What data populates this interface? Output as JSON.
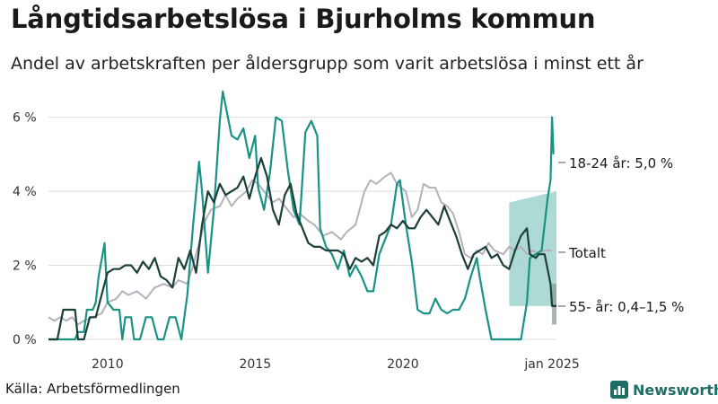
{
  "header": {
    "title": "Långtidsarbetslösa i Bjurholms kommun",
    "subtitle": "Andel av arbetskraften per åldersgrupp som varit arbetslösa i minst ett år"
  },
  "footer": {
    "source": "Källa: Arbetsförmedlingen",
    "brand": "Newsworthy"
  },
  "colors": {
    "youth": "#1a9384",
    "older": "#1c3f38",
    "total": "#b4b0be",
    "youth_band": "#9fd3cd",
    "older_band": "#8a9b97",
    "grid": "#dddddd",
    "axis_text": "#333333",
    "brand": "#1f6e63"
  },
  "chart_data": {
    "type": "line",
    "title": "Långtidsarbetslösa i Bjurholms kommun",
    "subtitle": "Andel av arbetskraften per åldersgrupp som varit arbetslösa i minst ett år",
    "x_range": [
      2008.0,
      2025.2
    ],
    "ylim": [
      0,
      6.5
    ],
    "y_ticks": [
      0,
      2,
      4,
      6
    ],
    "y_tick_labels": [
      "0 %",
      "2 %",
      "4 %",
      "6 %"
    ],
    "x_ticks": [
      2010,
      2015,
      2020,
      2025.05
    ],
    "x_tick_labels": [
      "2010",
      "2015",
      "2020",
      "jan 2025"
    ],
    "grid": true,
    "series": [
      {
        "key": "total",
        "values": [
          [
            2008.0,
            0.6
          ],
          [
            2008.2,
            0.5
          ],
          [
            2008.4,
            0.6
          ],
          [
            2008.6,
            0.5
          ],
          [
            2008.8,
            0.6
          ],
          [
            2009.0,
            0.4
          ],
          [
            2009.2,
            0.5
          ],
          [
            2009.5,
            0.6
          ],
          [
            2009.8,
            0.7
          ],
          [
            2010.0,
            1.0
          ],
          [
            2010.3,
            1.1
          ],
          [
            2010.5,
            1.3
          ],
          [
            2010.7,
            1.2
          ],
          [
            2011.0,
            1.3
          ],
          [
            2011.3,
            1.1
          ],
          [
            2011.6,
            1.4
          ],
          [
            2011.9,
            1.5
          ],
          [
            2012.2,
            1.4
          ],
          [
            2012.4,
            1.6
          ],
          [
            2012.7,
            1.5
          ],
          [
            2012.9,
            2.0
          ],
          [
            2013.1,
            2.6
          ],
          [
            2013.3,
            3.2
          ],
          [
            2013.5,
            3.5
          ],
          [
            2013.8,
            3.6
          ],
          [
            2014.0,
            3.9
          ],
          [
            2014.2,
            3.6
          ],
          [
            2014.4,
            3.8
          ],
          [
            2014.7,
            4.0
          ],
          [
            2014.9,
            4.3
          ],
          [
            2015.1,
            4.2
          ],
          [
            2015.3,
            4.0
          ],
          [
            2015.6,
            3.7
          ],
          [
            2015.8,
            3.8
          ],
          [
            2016.0,
            3.6
          ],
          [
            2016.3,
            3.3
          ],
          [
            2016.5,
            3.4
          ],
          [
            2016.8,
            3.2
          ],
          [
            2017.0,
            3.1
          ],
          [
            2017.3,
            2.8
          ],
          [
            2017.6,
            2.9
          ],
          [
            2017.9,
            2.7
          ],
          [
            2018.1,
            2.9
          ],
          [
            2018.4,
            3.1
          ],
          [
            2018.7,
            4.0
          ],
          [
            2018.9,
            4.3
          ],
          [
            2019.1,
            4.2
          ],
          [
            2019.4,
            4.4
          ],
          [
            2019.6,
            4.5
          ],
          [
            2019.8,
            4.2
          ],
          [
            2020.1,
            4.0
          ],
          [
            2020.3,
            3.3
          ],
          [
            2020.5,
            3.5
          ],
          [
            2020.7,
            4.2
          ],
          [
            2020.9,
            4.1
          ],
          [
            2021.1,
            4.1
          ],
          [
            2021.3,
            3.7
          ],
          [
            2021.5,
            3.6
          ],
          [
            2021.7,
            3.4
          ],
          [
            2021.9,
            2.9
          ],
          [
            2022.1,
            2.3
          ],
          [
            2022.3,
            2.2
          ],
          [
            2022.5,
            2.4
          ],
          [
            2022.7,
            2.3
          ],
          [
            2022.9,
            2.6
          ],
          [
            2023.1,
            2.4
          ],
          [
            2023.4,
            2.3
          ],
          [
            2023.6,
            2.5
          ],
          [
            2023.8,
            2.4
          ],
          [
            2024.0,
            2.5
          ],
          [
            2024.2,
            2.3
          ],
          [
            2024.4,
            2.4
          ],
          [
            2024.6,
            2.3
          ],
          [
            2024.8,
            2.4
          ],
          [
            2025.05,
            2.4
          ]
        ]
      },
      {
        "key": "youth",
        "values": [
          [
            2008.0,
            0.0
          ],
          [
            2008.5,
            0.0
          ],
          [
            2008.9,
            0.0
          ],
          [
            2009.0,
            0.2
          ],
          [
            2009.2,
            0.2
          ],
          [
            2009.3,
            0.8
          ],
          [
            2009.5,
            0.8
          ],
          [
            2009.6,
            1.0
          ],
          [
            2009.7,
            1.7
          ],
          [
            2009.9,
            2.6
          ],
          [
            2010.0,
            1.0
          ],
          [
            2010.2,
            0.8
          ],
          [
            2010.4,
            0.8
          ],
          [
            2010.5,
            0.0
          ],
          [
            2010.6,
            0.6
          ],
          [
            2010.8,
            0.6
          ],
          [
            2010.9,
            0.0
          ],
          [
            2011.1,
            0.0
          ],
          [
            2011.3,
            0.6
          ],
          [
            2011.5,
            0.6
          ],
          [
            2011.7,
            0.0
          ],
          [
            2011.9,
            0.0
          ],
          [
            2012.1,
            0.6
          ],
          [
            2012.3,
            0.6
          ],
          [
            2012.5,
            0.0
          ],
          [
            2012.7,
            1.2
          ],
          [
            2012.9,
            3.1
          ],
          [
            2013.1,
            4.8
          ],
          [
            2013.2,
            4.0
          ],
          [
            2013.4,
            1.8
          ],
          [
            2013.6,
            3.5
          ],
          [
            2013.8,
            5.9
          ],
          [
            2013.9,
            6.7
          ],
          [
            2014.1,
            5.9
          ],
          [
            2014.2,
            5.5
          ],
          [
            2014.4,
            5.4
          ],
          [
            2014.6,
            5.7
          ],
          [
            2014.8,
            4.9
          ],
          [
            2015.0,
            5.5
          ],
          [
            2015.1,
            4.1
          ],
          [
            2015.3,
            3.5
          ],
          [
            2015.5,
            4.5
          ],
          [
            2015.7,
            6.0
          ],
          [
            2015.9,
            5.9
          ],
          [
            2016.1,
            4.6
          ],
          [
            2016.3,
            3.5
          ],
          [
            2016.5,
            3.1
          ],
          [
            2016.7,
            5.6
          ],
          [
            2016.9,
            5.9
          ],
          [
            2017.1,
            5.5
          ],
          [
            2017.2,
            3.0
          ],
          [
            2017.4,
            2.5
          ],
          [
            2017.6,
            2.3
          ],
          [
            2017.8,
            1.9
          ],
          [
            2018.0,
            2.4
          ],
          [
            2018.2,
            1.7
          ],
          [
            2018.4,
            2.0
          ],
          [
            2018.6,
            1.7
          ],
          [
            2018.8,
            1.3
          ],
          [
            2019.0,
            1.3
          ],
          [
            2019.2,
            2.3
          ],
          [
            2019.4,
            2.7
          ],
          [
            2019.6,
            3.1
          ],
          [
            2019.8,
            4.2
          ],
          [
            2019.9,
            4.3
          ],
          [
            2020.1,
            3.1
          ],
          [
            2020.3,
            2.1
          ],
          [
            2020.5,
            0.8
          ],
          [
            2020.7,
            0.7
          ],
          [
            2020.9,
            0.7
          ],
          [
            2021.1,
            1.1
          ],
          [
            2021.3,
            0.8
          ],
          [
            2021.5,
            0.7
          ],
          [
            2021.7,
            0.8
          ],
          [
            2021.9,
            0.8
          ],
          [
            2022.1,
            1.1
          ],
          [
            2022.3,
            1.7
          ],
          [
            2022.5,
            2.2
          ],
          [
            2022.6,
            1.7
          ],
          [
            2022.8,
            0.8
          ],
          [
            2023.0,
            0.0
          ],
          [
            2023.2,
            0.0
          ],
          [
            2023.5,
            0.0
          ],
          [
            2023.7,
            0.0
          ],
          [
            2023.9,
            0.0
          ],
          [
            2024.0,
            0.0
          ],
          [
            2024.2,
            1.0
          ],
          [
            2024.3,
            2.2
          ],
          [
            2024.5,
            2.3
          ],
          [
            2024.7,
            2.4
          ],
          [
            2024.9,
            3.8
          ],
          [
            2025.0,
            4.3
          ],
          [
            2025.05,
            6.0
          ],
          [
            2025.1,
            5.0
          ]
        ]
      },
      {
        "key": "older",
        "values": [
          [
            2008.0,
            0.0
          ],
          [
            2008.3,
            0.0
          ],
          [
            2008.5,
            0.8
          ],
          [
            2008.7,
            0.8
          ],
          [
            2008.9,
            0.8
          ],
          [
            2009.0,
            0.0
          ],
          [
            2009.2,
            0.0
          ],
          [
            2009.4,
            0.6
          ],
          [
            2009.6,
            0.6
          ],
          [
            2009.8,
            1.2
          ],
          [
            2010.0,
            1.8
          ],
          [
            2010.2,
            1.9
          ],
          [
            2010.4,
            1.9
          ],
          [
            2010.6,
            2.0
          ],
          [
            2010.8,
            2.0
          ],
          [
            2011.0,
            1.8
          ],
          [
            2011.2,
            2.1
          ],
          [
            2011.4,
            1.9
          ],
          [
            2011.6,
            2.2
          ],
          [
            2011.8,
            1.7
          ],
          [
            2012.0,
            1.6
          ],
          [
            2012.2,
            1.4
          ],
          [
            2012.4,
            2.2
          ],
          [
            2012.6,
            1.9
          ],
          [
            2012.8,
            2.4
          ],
          [
            2013.0,
            1.8
          ],
          [
            2013.2,
            3.1
          ],
          [
            2013.4,
            4.0
          ],
          [
            2013.6,
            3.7
          ],
          [
            2013.8,
            4.2
          ],
          [
            2014.0,
            3.9
          ],
          [
            2014.2,
            4.0
          ],
          [
            2014.4,
            4.1
          ],
          [
            2014.6,
            4.4
          ],
          [
            2014.8,
            3.8
          ],
          [
            2015.0,
            4.4
          ],
          [
            2015.2,
            4.9
          ],
          [
            2015.4,
            4.4
          ],
          [
            2015.6,
            3.5
          ],
          [
            2015.8,
            3.1
          ],
          [
            2016.0,
            3.9
          ],
          [
            2016.2,
            4.2
          ],
          [
            2016.4,
            3.4
          ],
          [
            2016.6,
            3.0
          ],
          [
            2016.8,
            2.6
          ],
          [
            2017.0,
            2.5
          ],
          [
            2017.2,
            2.5
          ],
          [
            2017.4,
            2.4
          ],
          [
            2017.6,
            2.4
          ],
          [
            2017.8,
            2.4
          ],
          [
            2018.0,
            2.3
          ],
          [
            2018.2,
            1.9
          ],
          [
            2018.4,
            2.2
          ],
          [
            2018.6,
            2.1
          ],
          [
            2018.8,
            2.2
          ],
          [
            2019.0,
            2.0
          ],
          [
            2019.2,
            2.8
          ],
          [
            2019.4,
            2.9
          ],
          [
            2019.6,
            3.1
          ],
          [
            2019.8,
            3.0
          ],
          [
            2020.0,
            3.2
          ],
          [
            2020.2,
            3.0
          ],
          [
            2020.4,
            3.0
          ],
          [
            2020.6,
            3.3
          ],
          [
            2020.8,
            3.5
          ],
          [
            2021.0,
            3.3
          ],
          [
            2021.2,
            3.1
          ],
          [
            2021.4,
            3.6
          ],
          [
            2021.6,
            3.2
          ],
          [
            2021.8,
            2.8
          ],
          [
            2022.0,
            2.3
          ],
          [
            2022.2,
            1.9
          ],
          [
            2022.4,
            2.3
          ],
          [
            2022.6,
            2.4
          ],
          [
            2022.8,
            2.5
          ],
          [
            2023.0,
            2.2
          ],
          [
            2023.2,
            2.3
          ],
          [
            2023.4,
            2.0
          ],
          [
            2023.6,
            1.9
          ],
          [
            2023.8,
            2.4
          ],
          [
            2024.0,
            2.8
          ],
          [
            2024.2,
            3.0
          ],
          [
            2024.3,
            2.3
          ],
          [
            2024.5,
            2.2
          ],
          [
            2024.6,
            2.3
          ],
          [
            2024.8,
            2.3
          ],
          [
            2024.9,
            1.9
          ],
          [
            2025.0,
            1.5
          ],
          [
            2025.05,
            0.9
          ],
          [
            2025.2,
            0.9
          ]
        ]
      }
    ],
    "bands": [
      {
        "key": "youth",
        "x_range": [
          2023.6,
          2025.2
        ],
        "lower": 0.9,
        "upper": 3.7,
        "upper_end": 4.0
      },
      {
        "key": "older",
        "x_range": [
          2025.05,
          2025.2
        ],
        "lower": 0.4,
        "upper": 1.5
      }
    ],
    "annotations": [
      {
        "series": "youth",
        "text": "18-24 år: 5,0 %",
        "value": 5.0
      },
      {
        "series": "total",
        "text": "Totalt",
        "value": 2.4
      },
      {
        "series": "older",
        "text": "55- år: 0,4–1,5 %",
        "value": 0.9
      }
    ]
  }
}
